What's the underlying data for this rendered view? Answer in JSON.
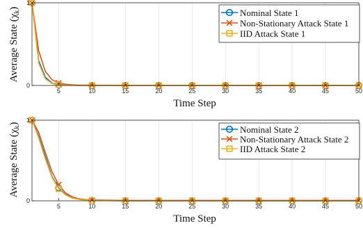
{
  "colors": {
    "nominal": "#0072BD",
    "non_stationary": "#D95319",
    "iid": "#EDB120",
    "grid": "#e6e6e6",
    "axis": "#262626"
  },
  "chart_data": [
    {
      "type": "line",
      "xlabel": "Time Step",
      "ylabel": "Average State (χ",
      "ylabel_sub": "k",
      "ylabel_close": ")",
      "xlim": [
        1,
        50
      ],
      "ylim": [
        0,
        1
      ],
      "xticks": [
        5,
        10,
        15,
        20,
        25,
        30,
        35,
        40,
        45,
        50
      ],
      "yticks": [
        0,
        1
      ],
      "grid": true,
      "legend_position": "top-right",
      "series": [
        {
          "name": "Nominal State 1",
          "marker": "circle",
          "color_key": "nominal",
          "x": [
            1,
            2,
            3,
            4,
            5,
            6,
            7,
            8,
            9,
            10,
            15,
            20,
            25,
            30,
            35,
            40,
            45,
            50
          ],
          "y": [
            1.0,
            0.3,
            0.1,
            0.03,
            0.01,
            0.003,
            0.001,
            0,
            0,
            0,
            0,
            0,
            0,
            0,
            0,
            0,
            0,
            0
          ],
          "markers_at": [
            1,
            5,
            10,
            15,
            20,
            25,
            30,
            35,
            40,
            45,
            50
          ]
        },
        {
          "name": "Non-Stationary Attack State 1",
          "marker": "x",
          "color_key": "non_stationary",
          "x": [
            1,
            2,
            3,
            4,
            5,
            6,
            7,
            8,
            9,
            10,
            15,
            20,
            25,
            30,
            35,
            40,
            45,
            50
          ],
          "y": [
            1.0,
            0.42,
            0.17,
            0.07,
            0.03,
            0.015,
            0.008,
            0.005,
            0.004,
            0.003,
            0.002,
            0.002,
            0.002,
            0.002,
            0.002,
            0.002,
            0.002,
            0.002
          ],
          "markers_at": [
            1,
            5,
            10,
            15,
            20,
            25,
            30,
            35,
            40,
            45,
            50
          ]
        },
        {
          "name": "IID Attack State 1",
          "marker": "square",
          "color_key": "iid",
          "x": [
            1,
            2,
            3,
            4,
            5,
            6,
            7,
            8,
            9,
            10,
            15,
            20,
            25,
            30,
            35,
            40,
            45,
            50
          ],
          "y": [
            1.0,
            0.27,
            0.08,
            0.025,
            0.01,
            0.004,
            0.002,
            0.001,
            0,
            0,
            0,
            0,
            0,
            0,
            0,
            0,
            0,
            0
          ],
          "markers_at": [
            1,
            5,
            10,
            15,
            20,
            25,
            30,
            35,
            40,
            45,
            50
          ]
        }
      ]
    },
    {
      "type": "line",
      "xlabel": "Time Step",
      "ylabel": "Average State (χ",
      "ylabel_sub": "k",
      "ylabel_close": ")",
      "xlim": [
        1,
        50
      ],
      "ylim": [
        0,
        1
      ],
      "xticks": [
        5,
        10,
        15,
        20,
        25,
        30,
        35,
        40,
        45,
        50
      ],
      "yticks": [
        0,
        1
      ],
      "grid": true,
      "legend_position": "top-right",
      "series": [
        {
          "name": "Nominal State 2",
          "marker": "circle",
          "color_key": "nominal",
          "x": [
            1,
            2,
            3,
            4,
            5,
            6,
            7,
            8,
            9,
            10,
            15,
            20,
            25,
            30,
            35,
            40,
            45,
            50
          ],
          "y": [
            1.0,
            0.8,
            0.55,
            0.3,
            0.16,
            0.08,
            0.04,
            0.02,
            0.01,
            0.005,
            0,
            0,
            0,
            0,
            0,
            0,
            0,
            0
          ],
          "markers_at": [
            1,
            5,
            10,
            15,
            20,
            25,
            30,
            35,
            40,
            45,
            50
          ]
        },
        {
          "name": "Non-Stationary Attack State 2",
          "marker": "x",
          "color_key": "non_stationary",
          "x": [
            1,
            2,
            3,
            4,
            5,
            6,
            7,
            8,
            9,
            10,
            15,
            20,
            25,
            30,
            35,
            40,
            45,
            50
          ],
          "y": [
            1.0,
            0.85,
            0.6,
            0.36,
            0.2,
            0.1,
            0.05,
            0.025,
            0.015,
            0.01,
            0.005,
            0.005,
            0.005,
            0.005,
            0.005,
            0.005,
            0.005,
            0.005
          ],
          "markers_at": [
            1,
            5,
            10,
            15,
            20,
            25,
            30,
            35,
            40,
            45,
            50
          ]
        },
        {
          "name": "IID Attack State 2",
          "marker": "square",
          "color_key": "iid",
          "x": [
            1,
            2,
            3,
            4,
            5,
            6,
            7,
            8,
            9,
            10,
            15,
            20,
            25,
            30,
            35,
            40,
            45,
            50
          ],
          "y": [
            1.0,
            0.78,
            0.52,
            0.29,
            0.15,
            0.075,
            0.035,
            0.017,
            0.008,
            0.004,
            0,
            0,
            0,
            0,
            0,
            0,
            0,
            0
          ],
          "markers_at": [
            1,
            5,
            10,
            15,
            20,
            25,
            30,
            35,
            40,
            45,
            50
          ]
        }
      ]
    }
  ]
}
